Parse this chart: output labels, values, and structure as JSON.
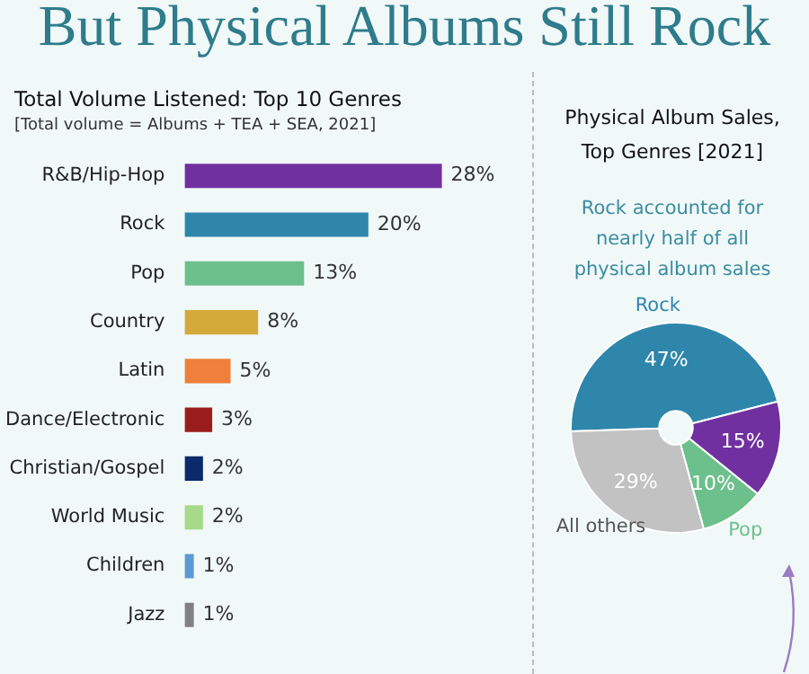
{
  "chart_data": [
    {
      "type": "bar",
      "orientation": "horizontal",
      "title": "But Physical Albums Still Rock",
      "subtitle": "Total Volume Listened: Top 10 Genres",
      "annotations": [
        "[Total volume = Albums + TEA + SEA, 2021]"
      ],
      "categories": [
        "R&B/Hip-Hop",
        "Rock",
        "Pop",
        "Country",
        "Latin",
        "Dance/Electronic",
        "Christian/Gospel",
        "World Music",
        "Children",
        "Jazz"
      ],
      "values": [
        28,
        20,
        13,
        8,
        5,
        3,
        2,
        2,
        1,
        1
      ],
      "value_labels": [
        "28%",
        "20%",
        "13%",
        "8%",
        "5%",
        "3%",
        "2%",
        "2%",
        "1%",
        "1%"
      ],
      "colors": [
        "#7030a0",
        "#2e86ab",
        "#6cc08b",
        "#d4aa3a",
        "#ef7f3a",
        "#9b1c1c",
        "#0a2a6b",
        "#a6d98a",
        "#5b9bd5",
        "#808080"
      ],
      "legend": false
    },
    {
      "type": "donut",
      "title": "Physical Album Sales, Top Genres [2021]",
      "annotations": [
        "Rock accounted for nearly half of all physical album sales"
      ],
      "categories": [
        "Rock",
        null,
        "Pop",
        "All others"
      ],
      "values": [
        47,
        15,
        10,
        29
      ],
      "value_labels": [
        "47%",
        "15%",
        "10%",
        "29%"
      ],
      "colors": [
        "#2e86ab",
        "#7030a0",
        "#6cc08b",
        "#c2c2c2"
      ],
      "legend": false
    }
  ]
}
